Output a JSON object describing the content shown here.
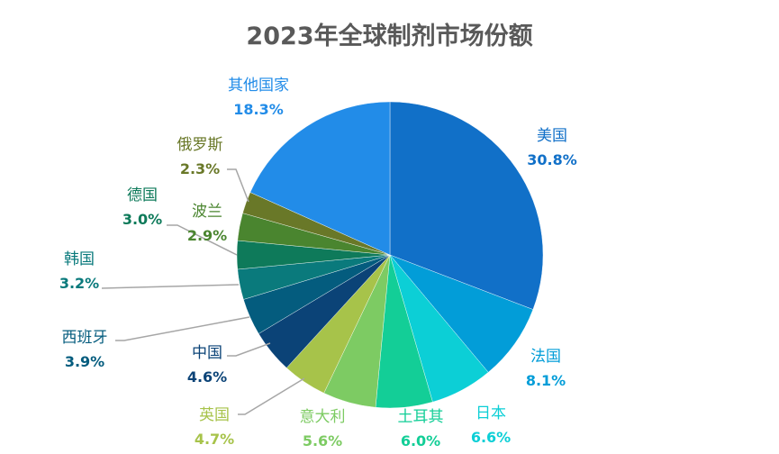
{
  "chart_data": {
    "type": "pie",
    "title": "2023年全球制剂市场份额",
    "slices": [
      {
        "label": "美国",
        "value": 30.8,
        "display": "30.8%",
        "color": "#1170c8"
      },
      {
        "label": "法国",
        "value": 8.1,
        "display": "8.1%",
        "color": "#029dd8"
      },
      {
        "label": "日本",
        "value": 6.6,
        "display": "6.6%",
        "color": "#0ccfd6"
      },
      {
        "label": "土耳其",
        "value": 6.0,
        "display": "6.0%",
        "color": "#13ce97"
      },
      {
        "label": "意大利",
        "value": 5.6,
        "display": "5.6%",
        "color": "#7dcb63"
      },
      {
        "label": "英国",
        "value": 4.7,
        "display": "4.7%",
        "color": "#a7c34a"
      },
      {
        "label": "中国",
        "value": 4.6,
        "display": "4.6%",
        "color": "#0b4377"
      },
      {
        "label": "西班牙",
        "value": 3.9,
        "display": "3.9%",
        "color": "#045c7e"
      },
      {
        "label": "韩国",
        "value": 3.2,
        "display": "3.2%",
        "color": "#0a7a7c"
      },
      {
        "label": "德国",
        "value": 3.0,
        "display": "3.0%",
        "color": "#0e7a5a"
      },
      {
        "label": "波兰",
        "value": 2.9,
        "display": "2.9%",
        "color": "#4a852f"
      },
      {
        "label": "俄罗斯",
        "value": 2.3,
        "display": "2.3%",
        "color": "#697828"
      },
      {
        "label": "其他国家",
        "value": 18.3,
        "display": "18.3%",
        "color": "#228ce8"
      }
    ],
    "start_angle": "top",
    "direction": "clockwise",
    "legend": "none"
  }
}
